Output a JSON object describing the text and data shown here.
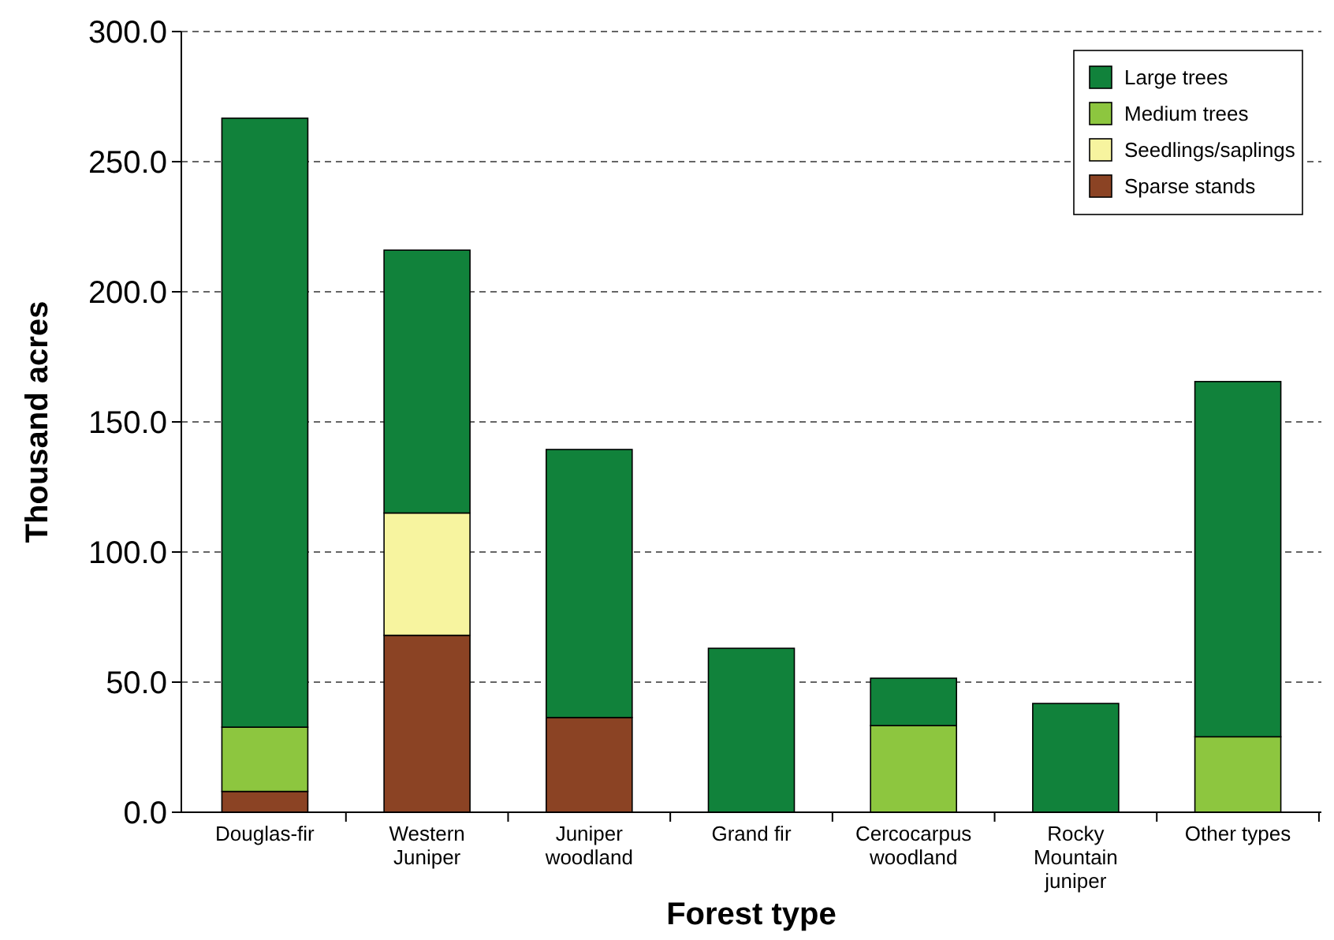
{
  "chart_data": {
    "type": "bar",
    "stacked": true,
    "xlabel": "Forest type",
    "ylabel": "Thousand acres",
    "categories": [
      "Douglas-fir",
      "Western\nJuniper",
      "Juniper\nwoodland",
      "Grand fir",
      "Cercocarpus\nwoodland",
      "Rocky\nMountain\njuniper",
      "Other types"
    ],
    "series": [
      {
        "name": "Sparse stands",
        "color": "#8b4324",
        "values": [
          8,
          68,
          36.4,
          null,
          null,
          null,
          null
        ]
      },
      {
        "name": "Seedlings/saplings",
        "color": "#f7f49f",
        "values": [
          null,
          47,
          null,
          null,
          null,
          null,
          null
        ]
      },
      {
        "name": "Medium trees",
        "color": "#8dc63f",
        "values": [
          24.7,
          null,
          null,
          null,
          33.3,
          null,
          29
        ]
      },
      {
        "name": "Large trees",
        "color": "#11823b",
        "values": [
          234,
          101,
          103,
          63,
          18.2,
          41.8,
          136.5
        ]
      }
    ],
    "ylim": [
      0,
      300
    ],
    "yticks": [
      {
        "value": 0,
        "label": "0.0"
      },
      {
        "value": 50,
        "label": "50.0"
      },
      {
        "value": 100,
        "label": "100.0"
      },
      {
        "value": 150,
        "label": "150.0"
      },
      {
        "value": 200,
        "label": "200.0"
      },
      {
        "value": 250,
        "label": "250.0"
      },
      {
        "value": 300,
        "label": "300.0"
      }
    ],
    "grid": "y",
    "legend": "top right"
  }
}
